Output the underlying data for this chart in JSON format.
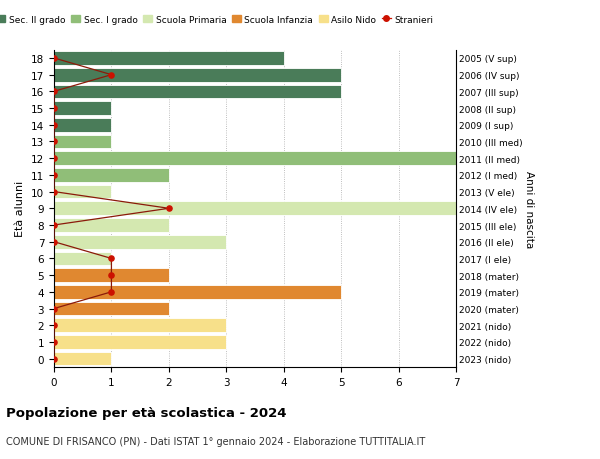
{
  "ages": [
    0,
    1,
    2,
    3,
    4,
    5,
    6,
    7,
    8,
    9,
    10,
    11,
    12,
    13,
    14,
    15,
    16,
    17,
    18
  ],
  "bar_values": [
    1,
    3,
    3,
    2,
    5,
    2,
    1,
    3,
    2,
    7,
    1,
    2,
    7,
    1,
    1,
    1,
    5,
    5,
    4
  ],
  "bar_colors": [
    "#f7e08a",
    "#f7e08a",
    "#f7e08a",
    "#e08830",
    "#e08830",
    "#e08830",
    "#d4e8b0",
    "#d4e8b0",
    "#d4e8b0",
    "#d4e8b0",
    "#d4e8b0",
    "#90be78",
    "#90be78",
    "#90be78",
    "#4a7c59",
    "#4a7c59",
    "#4a7c59",
    "#4a7c59",
    "#4a7c59"
  ],
  "stranieri_values": [
    0,
    0,
    0,
    0,
    1,
    1,
    1,
    0,
    0,
    2,
    0,
    0,
    0,
    0,
    0,
    0,
    0,
    1,
    0
  ],
  "right_labels": [
    "2023 (nido)",
    "2022 (nido)",
    "2021 (nido)",
    "2020 (mater)",
    "2019 (mater)",
    "2018 (mater)",
    "2017 (I ele)",
    "2016 (II ele)",
    "2015 (III ele)",
    "2014 (IV ele)",
    "2013 (V ele)",
    "2012 (I med)",
    "2011 (II med)",
    "2010 (III med)",
    "2009 (I sup)",
    "2008 (II sup)",
    "2007 (III sup)",
    "2006 (IV sup)",
    "2005 (V sup)"
  ],
  "legend_labels": [
    "Sec. II grado",
    "Sec. I grado",
    "Scuola Primaria",
    "Scuola Infanzia",
    "Asilo Nido",
    "Stranieri"
  ],
  "legend_colors": [
    "#4a7c59",
    "#90be78",
    "#d4e8b0",
    "#e08830",
    "#f7e08a",
    "#cc1100"
  ],
  "ylabel": "Età alunni",
  "right_ylabel": "Anni di nascita",
  "title": "Popolazione per età scolastica - 2024",
  "subtitle": "COMUNE DI FRISANCO (PN) - Dati ISTAT 1° gennaio 2024 - Elaborazione TUTTITALIA.IT",
  "xlim": [
    0,
    7
  ],
  "xticks": [
    0,
    1,
    2,
    3,
    4,
    5,
    6,
    7
  ]
}
